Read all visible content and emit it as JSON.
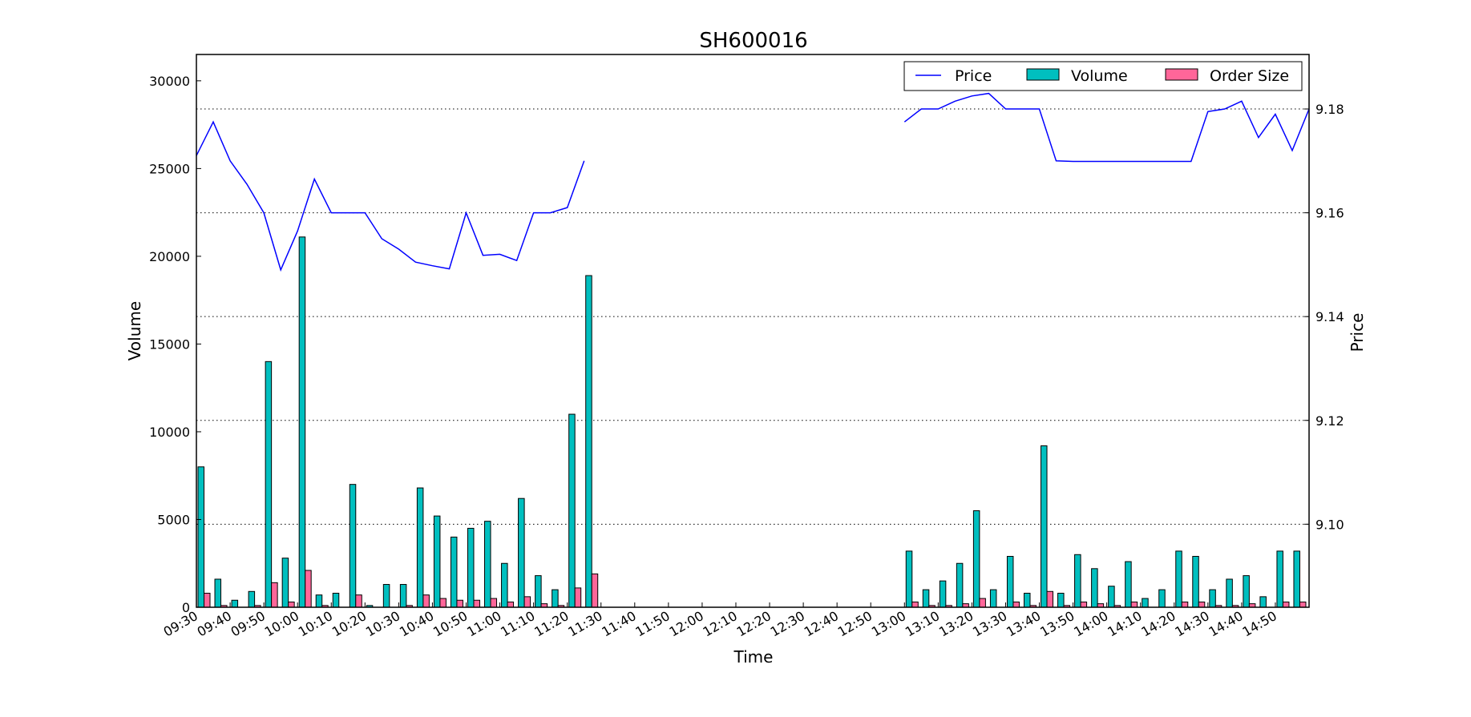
{
  "chart_data": {
    "type": "bar",
    "title": "SH600016",
    "xlabel": "Time",
    "ylabel": "Volume",
    "y2label": "Price",
    "x_ticks": [
      "09:30",
      "09:40",
      "09:50",
      "10:00",
      "10:10",
      "10:20",
      "10:30",
      "10:40",
      "10:50",
      "11:00",
      "11:10",
      "11:20",
      "11:30",
      "11:40",
      "11:50",
      "12:00",
      "12:10",
      "12:20",
      "12:30",
      "12:40",
      "12:50",
      "13:00",
      "13:10",
      "13:20",
      "13:30",
      "13:40",
      "13:50",
      "14:00",
      "14:10",
      "14:20",
      "14:30",
      "14:40",
      "14:50"
    ],
    "ylim": [
      0,
      31500
    ],
    "y_ticks": [
      0,
      5000,
      10000,
      15000,
      20000,
      25000,
      30000
    ],
    "y2lim": [
      9.084,
      9.1905
    ],
    "y2_ticks": [
      9.1,
      9.12,
      9.14,
      9.16,
      9.18
    ],
    "grid": "horizontal dotted at price ticks",
    "legend": {
      "position": "top-right",
      "entries": [
        "Price",
        "Volume",
        "Order Size"
      ]
    },
    "colors": {
      "price": "#0000ff",
      "volume": "#00bfbf",
      "order_size": "#ff6699"
    },
    "x_minutes": [
      0,
      5,
      10,
      15,
      20,
      25,
      30,
      35,
      40,
      45,
      50,
      55,
      60,
      65,
      70,
      75,
      80,
      85,
      90,
      95,
      100,
      105,
      110,
      115,
      120,
      210,
      215,
      220,
      225,
      230,
      235,
      240,
      245,
      250,
      255,
      260,
      265,
      270,
      275,
      280,
      285,
      290,
      295,
      300,
      305,
      310,
      315,
      320,
      325,
      330
    ],
    "series": [
      {
        "name": "Volume",
        "values": [
          8000,
          1600,
          400,
          900,
          14000,
          2800,
          21100,
          700,
          800,
          7000,
          100,
          1300,
          1300,
          6800,
          5200,
          4000,
          4500,
          4900,
          2500,
          6200,
          1800,
          1000,
          11000,
          18900,
          null,
          3200,
          1000,
          1500,
          2500,
          5500,
          1000,
          2900,
          800,
          9200,
          800,
          3000,
          2200,
          1200,
          2600,
          500,
          1000,
          3200,
          2900,
          1000,
          1600,
          1800,
          600,
          3200,
          3200,
          null
        ],
        "color": "#00bfbf"
      },
      {
        "name": "Order Size",
        "values": [
          800,
          100,
          0,
          100,
          1400,
          300,
          2100,
          100,
          0,
          700,
          0,
          0,
          100,
          700,
          500,
          400,
          400,
          500,
          300,
          600,
          200,
          100,
          1100,
          1900,
          null,
          300,
          100,
          100,
          200,
          500,
          0,
          300,
          100,
          900,
          100,
          300,
          200,
          100,
          300,
          0,
          0,
          300,
          300,
          100,
          100,
          200,
          0,
          300,
          300,
          null
        ],
        "color": "#ff6699"
      },
      {
        "name": "Price",
        "values": [
          9.171,
          9.1775,
          9.17,
          9.1655,
          9.16,
          9.149,
          9.1565,
          9.1665,
          9.16,
          9.16,
          9.16,
          9.155,
          9.153,
          9.1505,
          9.1498,
          9.1492,
          9.16,
          9.1518,
          9.152,
          9.1508,
          9.16,
          9.16,
          9.161,
          9.17,
          null,
          9.1775,
          9.18,
          9.18,
          9.1815,
          9.1825,
          9.183,
          9.18,
          9.18,
          9.18,
          9.17,
          9.1699,
          9.1699,
          9.1699,
          9.1699,
          9.1699,
          9.1699,
          9.1699,
          9.1699,
          9.1795,
          9.18,
          9.1815,
          9.1745,
          9.179,
          9.172,
          9.18
        ],
        "color": "#0000ff",
        "axis": "right"
      }
    ]
  }
}
